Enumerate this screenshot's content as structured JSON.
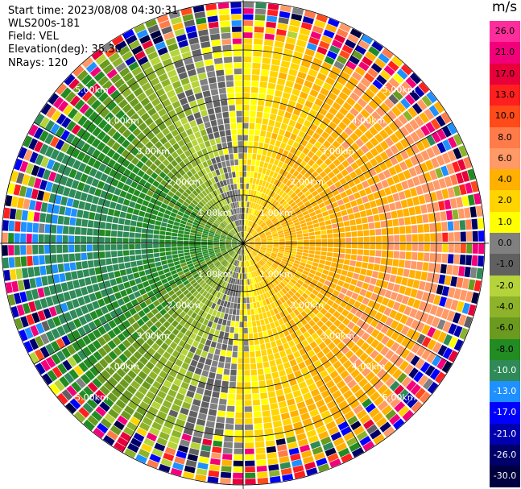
{
  "info": {
    "start_time": "Start time: 2023/08/08 04:30:31",
    "site": "WLS200s-181",
    "field": "Field: VEL",
    "elevation": "Elevation(deg): 35.30",
    "nrays": "NRays: 120"
  },
  "colorbar": {
    "unit": "m/s",
    "labels": [
      "26.0",
      "21.0",
      "17.0",
      "13.0",
      "10.0",
      "8.0",
      "6.0",
      "4.0",
      "2.0",
      "1.0",
      "0.0",
      "-1.0",
      "-2.0",
      "-4.0",
      "-6.0",
      "-8.0",
      "-10.0",
      "-13.0",
      "-17.0",
      "-21.0",
      "-26.0",
      "-30.0"
    ],
    "colors": [
      "#ff2d9b",
      "#f2007a",
      "#e8003a",
      "#ff1f1f",
      "#ff4a1a",
      "#ff7b4a",
      "#ff9966",
      "#ffb000",
      "#ffd400",
      "#ffff00",
      "#808080",
      "#606060",
      "#b5d33a",
      "#8db32a",
      "#6a9a1e",
      "#228b22",
      "#2e8b57",
      "#1e90ff",
      "#0000ff",
      "#0000b0",
      "#00006a",
      "#000040"
    ]
  },
  "chart_data": {
    "type": "polar-ppi",
    "field": "VEL",
    "units": "m/s",
    "n_rays": 120,
    "elevation_deg": 35.3,
    "ring_labels": [
      "1.00km",
      "2.00km",
      "3.00km",
      "4.00km",
      "5.00km"
    ],
    "ring_ranges_km": [
      1,
      2,
      3,
      4,
      5
    ],
    "max_range_km": 5.0,
    "colorscale": [
      {
        "value": 26.0,
        "color": "#ff2d9b"
      },
      {
        "value": 21.0,
        "color": "#f2007a"
      },
      {
        "value": 17.0,
        "color": "#e8003a"
      },
      {
        "value": 13.0,
        "color": "#ff1f1f"
      },
      {
        "value": 10.0,
        "color": "#ff4a1a"
      },
      {
        "value": 8.0,
        "color": "#ff7b4a"
      },
      {
        "value": 6.0,
        "color": "#ff9966"
      },
      {
        "value": 4.0,
        "color": "#ffb000"
      },
      {
        "value": 2.0,
        "color": "#ffd400"
      },
      {
        "value": 1.0,
        "color": "#ffff00"
      },
      {
        "value": 0.0,
        "color": "#808080"
      },
      {
        "value": -1.0,
        "color": "#606060"
      },
      {
        "value": -2.0,
        "color": "#b5d33a"
      },
      {
        "value": -4.0,
        "color": "#8db32a"
      },
      {
        "value": -6.0,
        "color": "#6a9a1e"
      },
      {
        "value": -8.0,
        "color": "#228b22"
      },
      {
        "value": -10.0,
        "color": "#2e8b57"
      },
      {
        "value": -13.0,
        "color": "#1e90ff"
      },
      {
        "value": -17.0,
        "color": "#0000ff"
      },
      {
        "value": -21.0,
        "color": "#0000b0"
      },
      {
        "value": -26.0,
        "color": "#00006a"
      },
      {
        "value": -30.0,
        "color": "#000040"
      }
    ],
    "pattern": {
      "positive_sector_center_deg": 90,
      "negative_sector_center_deg": 270,
      "peak_speed_ms": 7,
      "noise_beyond_km": 4.0
    }
  }
}
